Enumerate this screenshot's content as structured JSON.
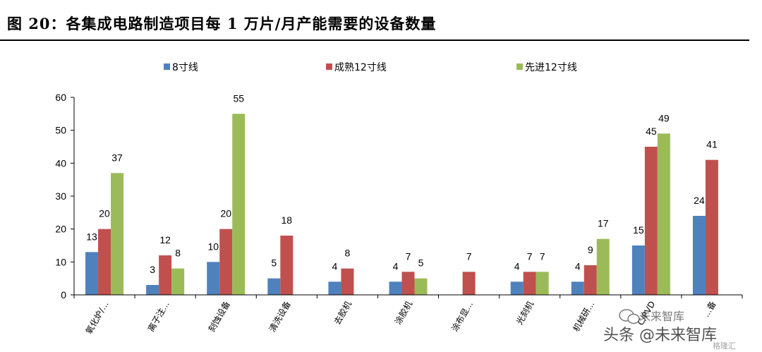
{
  "figure": {
    "title": "图 20：各集成电路制造项目每 1 万片/月产能需要的设备数量"
  },
  "chart_data": {
    "type": "bar",
    "categories": [
      "氧化炉/...",
      "离子注...",
      "刻蚀设备",
      "清洗设备",
      "去胶机",
      "涂胶机",
      "涂布显...",
      "光刻机",
      "机械研...",
      "C/PVD",
      "...备"
    ],
    "series": [
      {
        "name": "8寸线",
        "color": "#4F81BD",
        "values": [
          13,
          3,
          10,
          5,
          4,
          4,
          null,
          4,
          4,
          15,
          24
        ]
      },
      {
        "name": "成熟12寸线",
        "color": "#C0504D",
        "values": [
          20,
          12,
          20,
          18,
          8,
          7,
          7,
          7,
          9,
          45,
          41
        ]
      },
      {
        "name": "先进12寸线",
        "color": "#9BBB59",
        "values": [
          37,
          8,
          55,
          null,
          null,
          5,
          null,
          7,
          17,
          49,
          null
        ]
      }
    ],
    "ylim": [
      0,
      60
    ],
    "yticks": [
      0,
      10,
      20,
      30,
      40,
      50,
      60
    ],
    "legend_position": "top",
    "grid": false
  },
  "watermark": {
    "line1": "未来智库",
    "line2": "头条 @未来智库",
    "line3": "格隆汇"
  }
}
